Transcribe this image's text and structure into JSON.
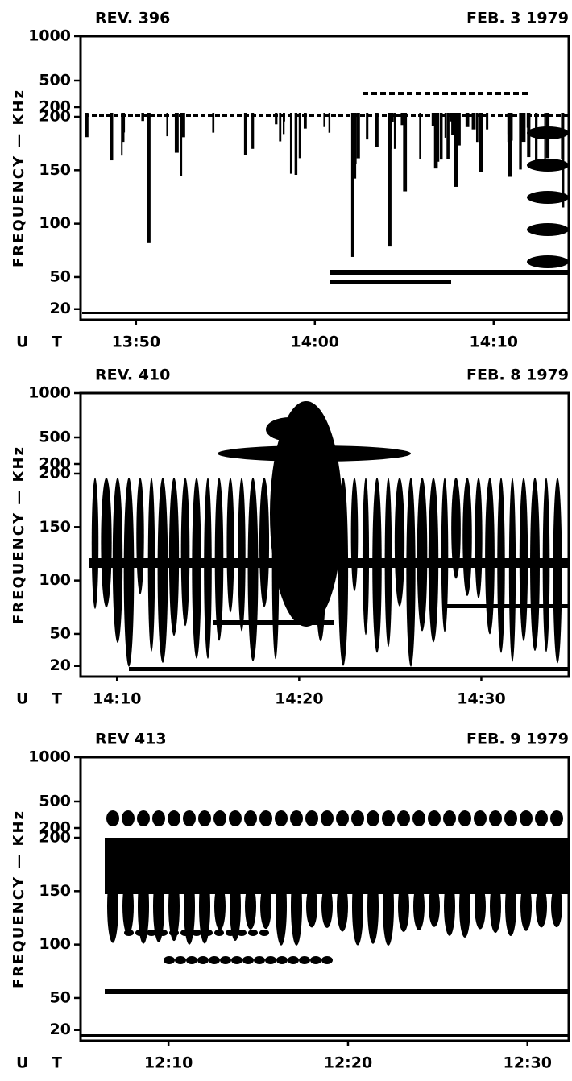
{
  "chart_data": [
    {
      "type": "spectrogram",
      "title": "REV. 396",
      "date": "FEB. 3 1979",
      "y_label": "FREQUENCY — KHz",
      "x_label": "U T",
      "xlim": [
        826.9,
        854.2
      ],
      "xticks": [
        {
          "value": 830,
          "label": "13:50"
        },
        {
          "value": 840,
          "label": "14:00"
        },
        {
          "value": 850,
          "label": "14:10"
        }
      ],
      "ylim": [
        10,
        200
      ],
      "yticks": [
        20,
        50,
        100,
        150,
        200
      ],
      "ylim_upper": [
        200,
        1000
      ],
      "yticks_upper": [
        200,
        500,
        1000
      ]
    },
    {
      "type": "spectrogram",
      "title": "REV. 410",
      "date": "FEB. 8 1979",
      "y_label": "FREQUENCY — KHz",
      "x_label": "U T",
      "xlim": [
        848.0,
        874.8
      ],
      "xticks": [
        {
          "value": 850,
          "label": "14:10"
        },
        {
          "value": 860,
          "label": "14:20"
        },
        {
          "value": 870,
          "label": "14:30"
        }
      ],
      "ylim": [
        10,
        200
      ],
      "yticks": [
        20,
        50,
        100,
        150,
        200
      ],
      "ylim_upper": [
        200,
        1000
      ],
      "yticks_upper": [
        200,
        500,
        1000
      ]
    },
    {
      "type": "spectrogram",
      "title": "REV 413",
      "date": "FEB. 9 1979",
      "y_label": "FREQUENCY — KHz",
      "x_label": "U T",
      "xlim": [
        725.1,
        752.3
      ],
      "xticks": [
        {
          "value": 730,
          "label": "12:10"
        },
        {
          "value": 740,
          "label": "12:20"
        },
        {
          "value": 750,
          "label": "12:30"
        }
      ],
      "ylim": [
        10,
        200
      ],
      "yticks": [
        20,
        50,
        100,
        150,
        200
      ],
      "ylim_upper": [
        200,
        1000
      ],
      "yticks_upper": [
        200,
        500,
        1000
      ]
    }
  ]
}
